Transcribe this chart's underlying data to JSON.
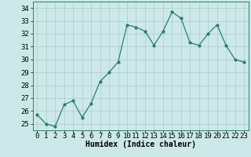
{
  "x": [
    0,
    1,
    2,
    3,
    4,
    5,
    6,
    7,
    8,
    9,
    10,
    11,
    12,
    13,
    14,
    15,
    16,
    17,
    18,
    19,
    20,
    21,
    22,
    23
  ],
  "y": [
    25.7,
    25.0,
    24.8,
    26.5,
    26.8,
    25.5,
    26.6,
    28.3,
    29.0,
    29.8,
    32.7,
    32.5,
    32.2,
    31.1,
    32.2,
    33.7,
    33.2,
    31.3,
    31.1,
    32.0,
    32.7,
    31.1,
    30.0,
    29.8
  ],
  "line_color": "#2e7d6e",
  "marker": "o",
  "marker_size": 2.0,
  "bg_color": "#cce8e8",
  "grid_color": "#aacccc",
  "ylim": [
    24.5,
    34.5
  ],
  "xlim": [
    -0.5,
    23.5
  ],
  "yticks": [
    25,
    26,
    27,
    28,
    29,
    30,
    31,
    32,
    33,
    34
  ],
  "xticks": [
    0,
    1,
    2,
    3,
    4,
    5,
    6,
    7,
    8,
    9,
    10,
    11,
    12,
    13,
    14,
    15,
    16,
    17,
    18,
    19,
    20,
    21,
    22,
    23
  ],
  "xlabel": "Humidex (Indice chaleur)",
  "xlabel_fontsize": 7,
  "tick_fontsize": 6.5,
  "title": ""
}
